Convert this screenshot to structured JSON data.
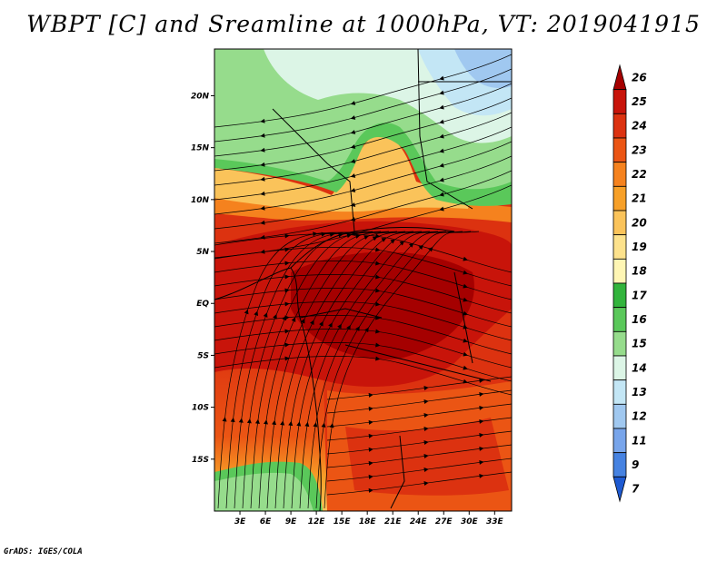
{
  "title": "WBPT [C] and Sreamline at 1000hPa, VT: 2019041915",
  "footer": "GrADS: IGES/COLA",
  "lat_ticks": [
    {
      "label": "20N",
      "lat": 20
    },
    {
      "label": "15N",
      "lat": 15
    },
    {
      "label": "10N",
      "lat": 10
    },
    {
      "label": "5N",
      "lat": 5
    },
    {
      "label": "EQ",
      "lat": 0
    },
    {
      "label": "5S",
      "lat": -5
    },
    {
      "label": "10S",
      "lat": -10
    },
    {
      "label": "15S",
      "lat": -15
    }
  ],
  "lon_ticks": [
    {
      "label": "3E",
      "lon": 3
    },
    {
      "label": "6E",
      "lon": 6
    },
    {
      "label": "9E",
      "lon": 9
    },
    {
      "label": "12E",
      "lon": 12
    },
    {
      "label": "15E",
      "lon": 15
    },
    {
      "label": "18E",
      "lon": 18
    },
    {
      "label": "21E",
      "lon": 21
    },
    {
      "label": "24E",
      "lon": 24
    },
    {
      "label": "27E",
      "lon": 27
    },
    {
      "label": "30E",
      "lon": 30
    },
    {
      "label": "33E",
      "lon": 33
    }
  ],
  "colorbar": {
    "labels": [
      "26",
      "25",
      "24",
      "23",
      "22",
      "21",
      "20",
      "19",
      "18",
      "17",
      "16",
      "15",
      "14",
      "13",
      "12",
      "11",
      "9",
      "7"
    ],
    "colors": [
      "#a50000",
      "#c8140a",
      "#dc3210",
      "#eb5514",
      "#f5821e",
      "#f7a028",
      "#fac35a",
      "#fde28c",
      "#fff6b4",
      "#32b43c",
      "#5ac85a",
      "#96dc8c",
      "#dcf5e6",
      "#c3e6f5",
      "#a0c8f0",
      "#78a5eb",
      "#4682e1",
      "#1e5ad2"
    ]
  },
  "map": {
    "lon_range": [
      0,
      35
    ],
    "lat_range": [
      -20,
      24.5
    ]
  }
}
